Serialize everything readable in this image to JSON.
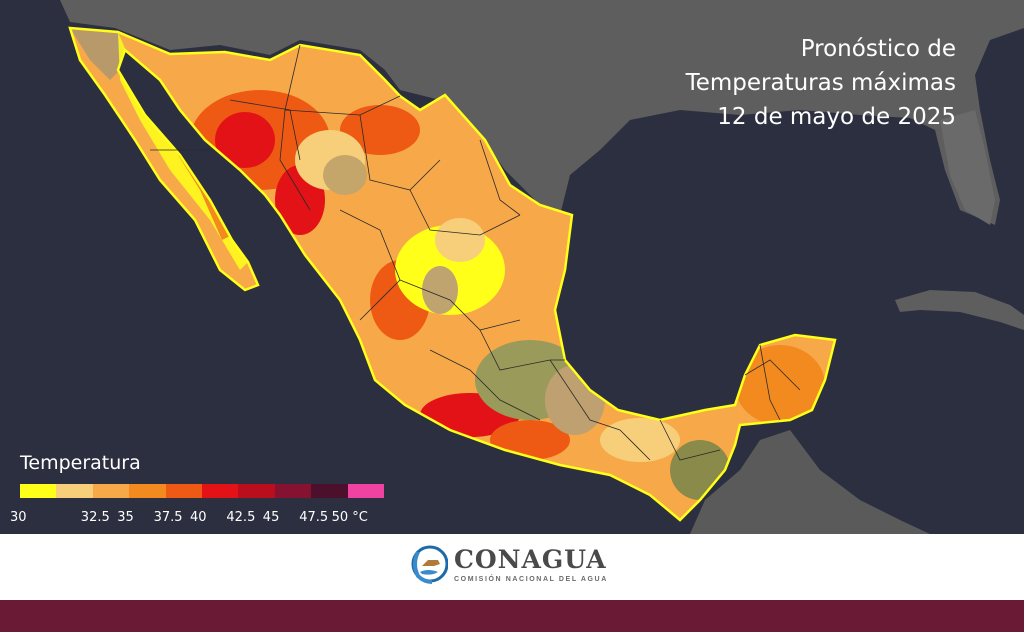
{
  "title": {
    "line1": "Pronóstico de",
    "line2": "Temperaturas máximas",
    "line3": "12 de mayo de 2025"
  },
  "legend": {
    "title": "Temperatura",
    "labels": [
      "30",
      "32.5",
      "35",
      "37.5",
      "40",
      "42.5",
      "45",
      "47.5",
      "50 °C"
    ],
    "colors": [
      "#ffff1a",
      "#f7cf7a",
      "#f7a94a",
      "#f28a1f",
      "#ee5a14",
      "#e21216",
      "#b80e1e",
      "#861232",
      "#4c0f2c",
      "#f042a0"
    ]
  },
  "footer": {
    "logo_name": "CONAGUA",
    "logo_subtitle": "COMISIÓN NACIONAL DEL AGUA",
    "band_color": "#6b1a35"
  },
  "colors": {
    "ocean": "#2b2f3f",
    "land_neighbors": "#5c5c5c",
    "state_borders": "#2a2a2a"
  }
}
